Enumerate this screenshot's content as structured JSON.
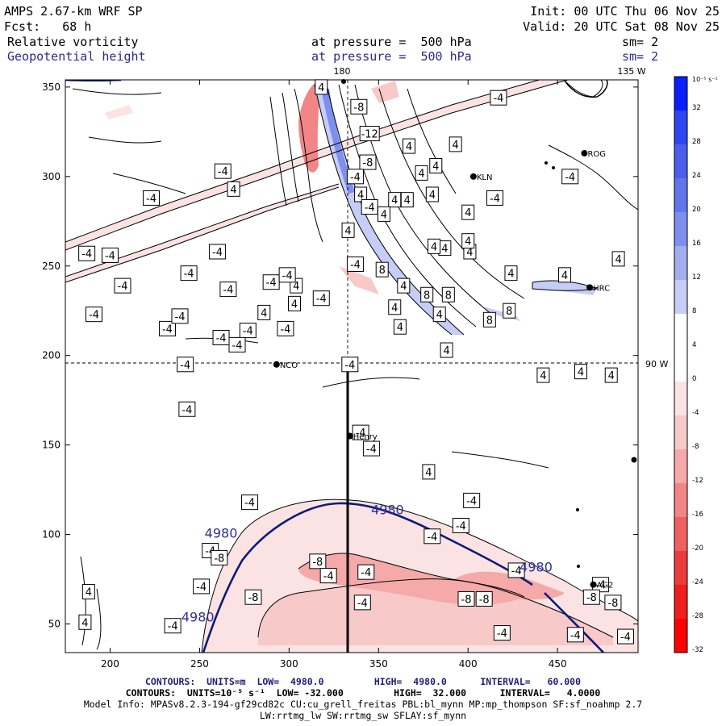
{
  "header": {
    "model": "AMPS 2.67-km WRF SP",
    "init": "Init: 00 UTC Thu 06 Nov 25",
    "fcst": "Fcst:   68 h",
    "valid": "Valid: 20 UTC Sat 08 Nov 25",
    "field1": "Relative vorticity",
    "field2": "Geopotential height",
    "pressure1": "at pressure =  500 hPa",
    "pressure2": "at pressure =  500 hPa",
    "sm1": "sm= 2",
    "sm2": "sm= 2"
  },
  "map": {
    "top_lon_label": "180",
    "top_right_lon_label": "135 W",
    "right_lon_label": "90 W",
    "stations": [
      {
        "name": "ROG",
        "x": 465,
        "y": 313
      },
      {
        "name": "KLN",
        "x": 403,
        "y": 300
      },
      {
        "name": "HRC",
        "x": 468,
        "y": 238
      },
      {
        "name": "NCO",
        "x": 293,
        "y": 195
      },
      {
        "name": "Henry",
        "x": 334,
        "y": 155
      },
      {
        "name": "AG2",
        "x": 470,
        "y": 72
      }
    ],
    "x_ticks": [
      "200",
      "250",
      "300",
      "350",
      "400",
      "450"
    ],
    "y_ticks": [
      "50",
      "100",
      "150",
      "200",
      "250",
      "300",
      "350"
    ],
    "vort_labels": [
      {
        "t": "-8",
        "x": 339,
        "y": 339
      },
      {
        "t": "-4",
        "x": 417,
        "y": 344
      },
      {
        "t": "-12",
        "x": 345,
        "y": 324
      },
      {
        "t": "-8",
        "x": 344,
        "y": 308
      },
      {
        "t": "-4",
        "x": 337,
        "y": 300
      },
      {
        "t": "4",
        "x": 318,
        "y": 350
      },
      {
        "t": "4",
        "x": 367,
        "y": 317
      },
      {
        "t": "4",
        "x": 382,
        "y": 306
      },
      {
        "t": "4",
        "x": 393,
        "y": 318
      },
      {
        "t": "4",
        "x": 374,
        "y": 302
      },
      {
        "t": "4",
        "x": 340,
        "y": 290
      },
      {
        "t": "4",
        "x": 333,
        "y": 270
      },
      {
        "t": "-4",
        "x": 345,
        "y": 283
      },
      {
        "t": "4",
        "x": 359,
        "y": 287
      },
      {
        "t": "-4",
        "x": 263,
        "y": 303
      },
      {
        "t": "4",
        "x": 269,
        "y": 293
      },
      {
        "t": "-4",
        "x": 223,
        "y": 288
      },
      {
        "t": "4",
        "x": 353,
        "y": 279
      },
      {
        "t": "4",
        "x": 366,
        "y": 287
      },
      {
        "t": "4",
        "x": 380,
        "y": 290
      },
      {
        "t": "4",
        "x": 400,
        "y": 280
      },
      {
        "t": "-4",
        "x": 415,
        "y": 288
      },
      {
        "t": "4",
        "x": 387,
        "y": 260
      },
      {
        "t": "4",
        "x": 401,
        "y": 258
      },
      {
        "t": "4",
        "x": 381,
        "y": 261
      },
      {
        "t": "-4",
        "x": 200,
        "y": 256
      },
      {
        "t": "-4",
        "x": 187,
        "y": 257
      },
      {
        "t": "-4",
        "x": 260,
        "y": 258
      },
      {
        "t": "-4",
        "x": 207,
        "y": 239
      },
      {
        "t": "-4",
        "x": 244,
        "y": 246
      },
      {
        "t": "-4",
        "x": 290,
        "y": 241
      },
      {
        "t": "4",
        "x": 304,
        "y": 239
      },
      {
        "t": "4",
        "x": 303,
        "y": 229
      },
      {
        "t": "-4",
        "x": 299,
        "y": 245
      },
      {
        "t": "4",
        "x": 400,
        "y": 264
      },
      {
        "t": "-4",
        "x": 337,
        "y": 251
      },
      {
        "t": "8",
        "x": 352,
        "y": 248
      },
      {
        "t": "4",
        "x": 364,
        "y": 239
      },
      {
        "t": "-4",
        "x": 266,
        "y": 237
      },
      {
        "t": "-4",
        "x": 232,
        "y": 215
      },
      {
        "t": "-4",
        "x": 191,
        "y": 223
      },
      {
        "t": "-4",
        "x": 239,
        "y": 222
      },
      {
        "t": "-4",
        "x": 298,
        "y": 215
      },
      {
        "t": "4",
        "x": 286,
        "y": 224
      },
      {
        "t": "-4",
        "x": 277,
        "y": 214
      },
      {
        "t": "8",
        "x": 389,
        "y": 234
      },
      {
        "t": "-4",
        "x": 318,
        "y": 232
      },
      {
        "t": "4",
        "x": 359,
        "y": 227
      },
      {
        "t": "8",
        "x": 377,
        "y": 234
      },
      {
        "t": "4",
        "x": 362,
        "y": 216
      },
      {
        "t": "4",
        "x": 384,
        "y": 223
      },
      {
        "t": "8",
        "x": 423,
        "y": 225
      },
      {
        "t": "8",
        "x": 412,
        "y": 220
      },
      {
        "t": "-4",
        "x": 262,
        "y": 210
      },
      {
        "t": "-4",
        "x": 271,
        "y": 206
      },
      {
        "t": "4",
        "x": 388,
        "y": 203
      },
      {
        "t": "-4",
        "x": 242,
        "y": 195
      },
      {
        "t": "-4",
        "x": 334,
        "y": 195
      },
      {
        "t": "4",
        "x": 442,
        "y": 189
      },
      {
        "t": "4",
        "x": 480,
        "y": 189
      },
      {
        "t": "4",
        "x": 463,
        "y": 191
      },
      {
        "t": "-4",
        "x": 243,
        "y": 170
      },
      {
        "t": "-4",
        "x": 340,
        "y": 157
      },
      {
        "t": "-4",
        "x": 346,
        "y": 148
      },
      {
        "t": "-4",
        "x": 278,
        "y": 118
      },
      {
        "t": "4",
        "x": 378,
        "y": 135
      },
      {
        "t": "-4",
        "x": 402,
        "y": 119
      },
      {
        "t": "-4",
        "x": 380,
        "y": 99
      },
      {
        "t": "-4",
        "x": 256,
        "y": 91
      },
      {
        "t": "-4",
        "x": 396,
        "y": 105
      },
      {
        "t": "-8",
        "x": 261,
        "y": 87
      },
      {
        "t": "-8",
        "x": 316,
        "y": 85
      },
      {
        "t": "-4",
        "x": 322,
        "y": 77
      },
      {
        "t": "-4",
        "x": 343,
        "y": 79
      },
      {
        "t": "-4",
        "x": 427,
        "y": 80
      },
      {
        "t": "-4",
        "x": 474,
        "y": 72
      },
      {
        "t": "-8",
        "x": 280,
        "y": 65
      },
      {
        "t": "-4",
        "x": 341,
        "y": 62
      },
      {
        "t": "-8",
        "x": 399,
        "y": 64
      },
      {
        "t": "-8",
        "x": 409,
        "y": 64
      },
      {
        "t": "-8",
        "x": 469,
        "y": 65
      },
      {
        "t": "-8",
        "x": 481,
        "y": 62
      },
      {
        "t": "-4",
        "x": 251,
        "y": 71
      },
      {
        "t": "4",
        "x": 188,
        "y": 68
      },
      {
        "t": "4",
        "x": 186,
        "y": 51
      },
      {
        "t": "-4",
        "x": 235,
        "y": 49
      },
      {
        "t": "-4",
        "x": 419,
        "y": 45
      },
      {
        "t": "-4",
        "x": 460,
        "y": 44
      },
      {
        "t": "-4",
        "x": 488,
        "y": 43
      },
      {
        "t": "4",
        "x": 424,
        "y": 246
      },
      {
        "t": "4",
        "x": 454,
        "y": 245
      },
      {
        "t": "-4",
        "x": 457,
        "y": 300
      },
      {
        "t": "4",
        "x": 484,
        "y": 254
      }
    ],
    "height_labels": [
      {
        "t": "4980",
        "x": 355,
        "y": 114
      },
      {
        "t": "4980",
        "x": 262,
        "y": 101
      },
      {
        "t": "4980",
        "x": 438,
        "y": 82
      },
      {
        "t": "4980",
        "x": 249,
        "y": 54
      }
    ]
  },
  "colorbar": {
    "units": "10⁻⁵ s⁻¹",
    "labels": [
      "32",
      "28",
      "24",
      "20",
      "16",
      "12",
      "8",
      "4",
      "0",
      "-4",
      "-8",
      "-12",
      "-16",
      "-20",
      "-24",
      "-28",
      "-32"
    ],
    "colors": [
      "#0a1eff",
      "#2e45f2",
      "#4a60ec",
      "#6176ea",
      "#7f8fee",
      "#a2afef",
      "#c6cdf6",
      "#ffffff",
      "#ffffff",
      "#fbe3e3",
      "#f8c9c9",
      "#f5a9a9",
      "#f28585",
      "#ef6060",
      "#ec3c3c",
      "#f01d1d",
      "#ff0000"
    ]
  },
  "footer": {
    "line1": "CONTOURS:  UNITS=m  LOW=  4980.0         HIGH=  4980.0      INTERVAL=   60.000",
    "line2": "CONTOURS:  UNITS=10⁻⁵ s⁻¹  LOW= -32.000         HIGH=  32.000      INTERVAL=   4.0000",
    "line3": "Model Info: MPASv8.2.3-194-gf29cd82c CU:cu_grell_freitas PBL:bl_mynn MP:mp_thompson SF:sf_noahmp 2.7",
    "line4": "LW:rrtmg_lw SW:rrtmg_sw SFLAY:sf_mynn"
  }
}
